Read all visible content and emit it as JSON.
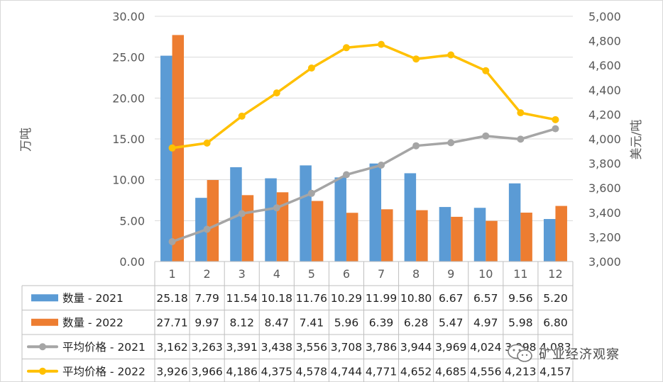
{
  "chart_data": {
    "type": "bar+line",
    "categories": [
      "1",
      "2",
      "3",
      "4",
      "5",
      "6",
      "7",
      "8",
      "9",
      "10",
      "11",
      "12"
    ],
    "left_axis": {
      "label": "万吨",
      "min": 0,
      "max": 30,
      "step": 5,
      "tick_labels": [
        "0.00",
        "5.00",
        "10.00",
        "15.00",
        "20.00",
        "25.00",
        "30.00"
      ]
    },
    "right_axis": {
      "label": "美元/吨",
      "min": 3000,
      "max": 5000,
      "step": 200,
      "tick_labels": [
        "3,000",
        "3,200",
        "3,400",
        "3,600",
        "3,800",
        "4,000",
        "4,200",
        "4,400",
        "4,600",
        "4,800",
        "5,000"
      ]
    },
    "series": [
      {
        "name": "数量 - 2021",
        "kind": "bar",
        "axis": "left",
        "color": "#5b9bd5",
        "values": [
          25.18,
          7.79,
          11.54,
          10.18,
          11.76,
          10.29,
          11.99,
          10.8,
          6.67,
          6.57,
          9.56,
          5.2
        ],
        "labels": [
          "25.18",
          "7.79",
          "11.54",
          "10.18",
          "11.76",
          "10.29",
          "11.99",
          "10.80",
          "6.67",
          "6.57",
          "9.56",
          "5.20"
        ]
      },
      {
        "name": "数量 - 2022",
        "kind": "bar",
        "axis": "left",
        "color": "#ed7d31",
        "values": [
          27.71,
          9.97,
          8.12,
          8.47,
          7.41,
          5.96,
          6.39,
          6.28,
          5.47,
          4.97,
          5.98,
          6.8
        ],
        "labels": [
          "27.71",
          "9.97",
          "8.12",
          "8.47",
          "7.41",
          "5.96",
          "6.39",
          "6.28",
          "5.47",
          "4.97",
          "5.98",
          "6.80"
        ]
      },
      {
        "name": "平均价格 - 2021",
        "kind": "line",
        "axis": "right",
        "color": "#a5a5a5",
        "values": [
          3162,
          3263,
          3391,
          3438,
          3556,
          3708,
          3786,
          3944,
          3969,
          4024,
          3998,
          4083
        ],
        "labels": [
          "3,162",
          "3,263",
          "3,391",
          "3,438",
          "3,556",
          "3,708",
          "3,786",
          "3,944",
          "3,969",
          "4,024",
          "3,998",
          "4,083"
        ]
      },
      {
        "name": "平均价格 - 2022",
        "kind": "line",
        "axis": "right",
        "color": "#ffc000",
        "values": [
          3926,
          3966,
          4186,
          4375,
          4578,
          4744,
          4771,
          4652,
          4685,
          4556,
          4213,
          4157
        ],
        "labels": [
          "3,926",
          "3,966",
          "4,186",
          "4,375",
          "4,578",
          "4,744",
          "4,771",
          "4,652",
          "4,685",
          "4,556",
          "4,213",
          "4,157"
        ]
      }
    ]
  },
  "watermark": {
    "icon": "wechat-icon",
    "text": "矿业经济观察"
  }
}
